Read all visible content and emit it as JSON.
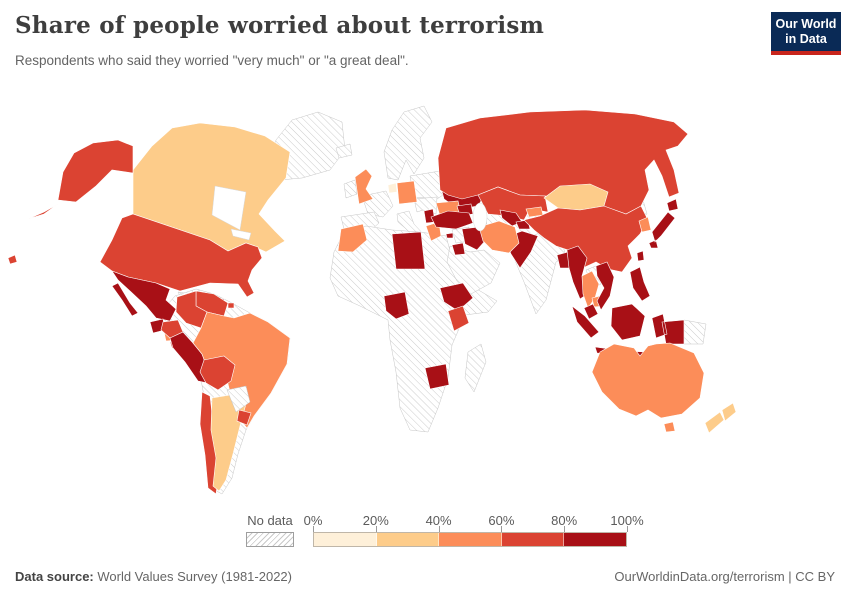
{
  "header": {
    "title": "Share of people worried about terrorism",
    "subtitle": "Respondents who said they worried \"very much\" or \"a great deal\".",
    "logo_line1": "Our World",
    "logo_line2": "in Data",
    "logo_bg_color": "#0a2a56",
    "logo_bar_color": "#c8251c"
  },
  "legend": {
    "no_data_label": "No data",
    "no_data_style": "diagonal-hatch"
  },
  "footer": {
    "source_label": "Data source:",
    "source_value": " World Values Survey (1981-2022)",
    "attribution": "OurWorldinData.org/terrorism | CC BY"
  },
  "chart_data": {
    "type": "choropleth",
    "title": "Share of people worried about terrorism",
    "subtitle": "Respondents who said they worried \"very much\" or \"a great deal\".",
    "geography": "world",
    "legend_position": "bottom",
    "no_data": {
      "label": "No data",
      "pattern": "diagonal-hatch"
    },
    "axis_ticks": [
      "0%",
      "20%",
      "40%",
      "60%",
      "80%",
      "100%"
    ],
    "bins": [
      {
        "range": "0-20%",
        "color": "#FEF0D9"
      },
      {
        "range": "20-40%",
        "color": "#FDCC8A"
      },
      {
        "range": "40-60%",
        "color": "#FC8D59"
      },
      {
        "range": "60-80%",
        "color": "#DB4332"
      },
      {
        "range": "80-100%",
        "color": "#A81016"
      }
    ],
    "country_bins": {
      "Netherlands": "0-20%",
      "Canada": "20-40%",
      "Argentina": "20-40%",
      "Mongolia": "20-40%",
      "New Zealand": "20-40%",
      "Brazil": "40-60%",
      "United Kingdom": "40-60%",
      "Germany": "40-60%",
      "Romania": "40-60%",
      "Greece": "40-60%",
      "Morocco": "40-60%",
      "Iran": "40-60%",
      "South Korea": "40-60%",
      "Thailand": "40-60%",
      "Cambodia": "40-60%",
      "Australia": "40-60%",
      "Kyrgyzstan": "40-60%",
      "Nicaragua": "40-60%",
      "United States": "60-80%",
      "Colombia": "60-80%",
      "Venezuela": "60-80%",
      "Ecuador": "60-80%",
      "Bolivia": "60-80%",
      "Chile": "60-80%",
      "Uruguay": "60-80%",
      "Russia": "60-80%",
      "Kazakhstan": "60-80%",
      "China": "60-80%",
      "Kenya": "60-80%",
      "Panama": "60-80%",
      "Puerto Rico": "60-80%",
      "Trinidad and Tobago": "60-80%",
      "Mexico": "80-100%",
      "Guatemala": "80-100%",
      "Haiti": "80-100%",
      "Dominican Republic": "80-100%",
      "Peru": "80-100%",
      "Libya": "80-100%",
      "Nigeria": "80-100%",
      "Ethiopia": "80-100%",
      "Zimbabwe": "80-100%",
      "Turkey": "80-100%",
      "Ukraine": "80-100%",
      "Serbia": "80-100%",
      "Cyprus": "80-100%",
      "Iraq": "80-100%",
      "Jordan": "80-100%",
      "Azerbaijan": "80-100%",
      "Armenia": "80-100%",
      "Uzbekistan": "80-100%",
      "Tajikistan": "80-100%",
      "Pakistan": "80-100%",
      "Bangladesh": "80-100%",
      "Myanmar": "80-100%",
      "Vietnam": "80-100%",
      "Malaysia": "80-100%",
      "Indonesia": "80-100%",
      "Philippines": "80-100%",
      "Japan": "80-100%",
      "Taiwan": "80-100%"
    },
    "no_data_examples": [
      "Greenland",
      "France",
      "Spain",
      "Portugal",
      "Ireland",
      "Italy",
      "Norway",
      "Sweden",
      "Finland",
      "Poland",
      "Egypt",
      "Algeria",
      "Saudi Arabia",
      "most of Sub-Saharan Africa",
      "Madagascar",
      "India",
      "Afghanistan",
      "Turkmenistan",
      "Syria",
      "North Korea",
      "Laos",
      "Papua New Guinea",
      "Paraguay",
      "Guyana",
      "Suriname",
      "Cuba"
    ]
  }
}
